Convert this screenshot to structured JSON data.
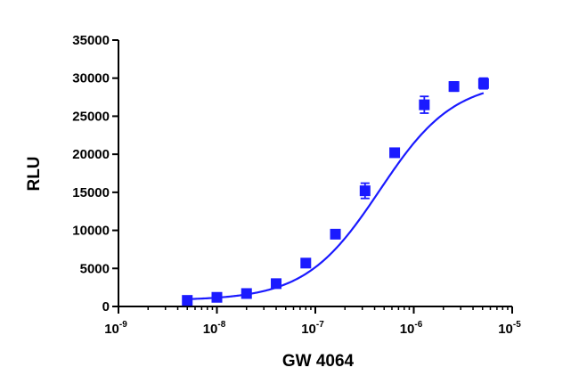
{
  "chart_data": {
    "type": "scatter",
    "title": "",
    "xlabel": "GW 4064",
    "ylabel": "RLU",
    "x_scale": "log",
    "xlim": [
      1e-09,
      1e-05
    ],
    "ylim": [
      0,
      35000
    ],
    "y_ticks": [
      0,
      5000,
      10000,
      15000,
      20000,
      25000,
      30000,
      35000
    ],
    "x_tick_labels": [
      {
        "base": "10",
        "exp": "-9"
      },
      {
        "base": "10",
        "exp": "-8"
      },
      {
        "base": "10",
        "exp": "-7"
      },
      {
        "base": "10",
        "exp": "-6"
      },
      {
        "base": "10",
        "exp": "-5"
      }
    ],
    "grid": false,
    "legend": "none",
    "color": "#1a1aff",
    "series": [
      {
        "marker": "square",
        "points": [
          {
            "x": 5e-09,
            "y": 800,
            "err": 250
          },
          {
            "x": 1e-08,
            "y": 1200,
            "err": 250
          },
          {
            "x": 2e-08,
            "y": 1700,
            "err": 250
          },
          {
            "x": 4e-08,
            "y": 3000,
            "err": 250
          },
          {
            "x": 8e-08,
            "y": 5700,
            "err": 300
          },
          {
            "x": 1.6e-07,
            "y": 9500,
            "err": 400
          },
          {
            "x": 3.2e-07,
            "y": 15200,
            "err": 1000
          },
          {
            "x": 6.4e-07,
            "y": 20200,
            "err": 500
          },
          {
            "x": 1.28e-06,
            "y": 26500,
            "err": 1100
          },
          {
            "x": 2.56e-06,
            "y": 28900,
            "err": 600
          },
          {
            "x": 5.12e-06,
            "y": 29300,
            "err": 700
          }
        ],
        "fit": {
          "model": "sigmoidal dose-response",
          "bottom": 800,
          "top": 29700,
          "ec50": 4.5e-07,
          "hill": 1.15
        }
      }
    ]
  }
}
